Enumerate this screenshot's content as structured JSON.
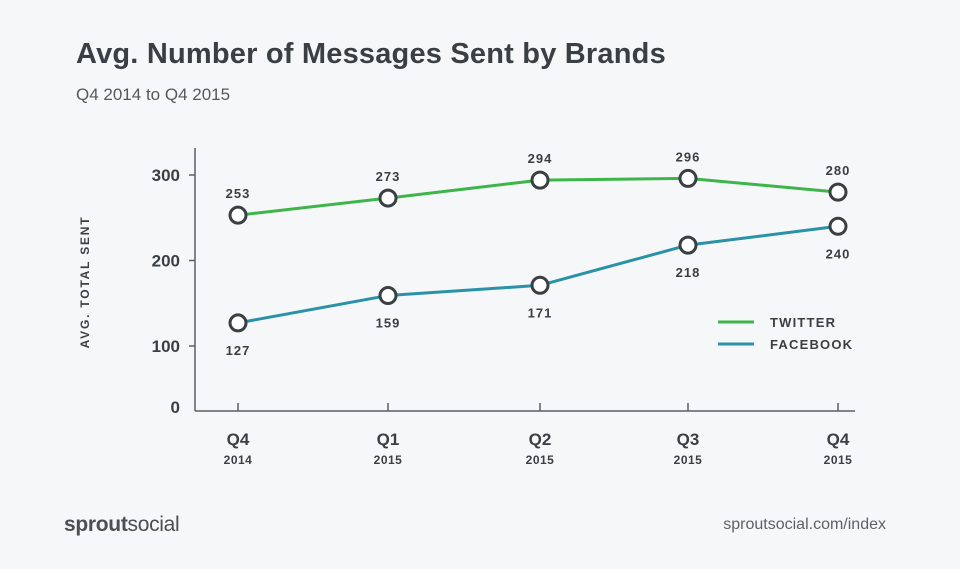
{
  "title": "Avg. Number of Messages Sent by Brands",
  "subtitle": "Q4 2014 to Q4 2015",
  "logo": {
    "part1": "sprout",
    "part2": "social"
  },
  "source": "sproutsocial.com/index",
  "colors": {
    "twitter": "#3db54a",
    "facebook": "#2a92a8",
    "axis": "#5a5e62",
    "text": "#3a3f44"
  },
  "chart_data": {
    "type": "line",
    "title": "Avg. Number of Messages Sent by Brands",
    "subtitle": "Q4 2014 to Q4 2015",
    "xlabel": "",
    "ylabel": "AVG. TOTAL SENT",
    "categories": [
      {
        "label": "Q4",
        "year": "2014"
      },
      {
        "label": "Q1",
        "year": "2015"
      },
      {
        "label": "Q2",
        "year": "2015"
      },
      {
        "label": "Q3",
        "year": "2015"
      },
      {
        "label": "Q4",
        "year": "2015"
      }
    ],
    "yticks": [
      0,
      100,
      200,
      300
    ],
    "ylim": [
      0,
      330
    ],
    "legend_position": "right",
    "series": [
      {
        "name": "TWITTER",
        "color": "#3db54a",
        "values": [
          253,
          273,
          294,
          296,
          280
        ],
        "label_side": "above"
      },
      {
        "name": "FACEBOOK",
        "color": "#2a92a8",
        "values": [
          127,
          159,
          171,
          218,
          240
        ],
        "label_side": "below"
      }
    ]
  }
}
